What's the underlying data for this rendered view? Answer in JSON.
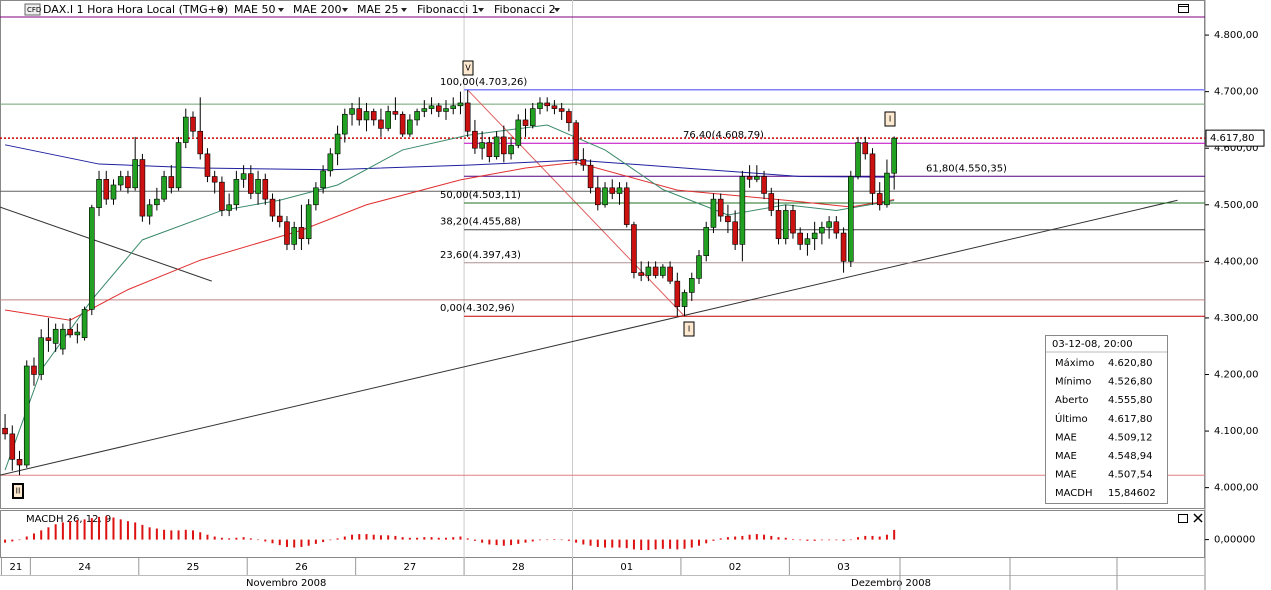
{
  "toolbar": {
    "badge": "CFD",
    "instrument": "DAX.I 1 Hora Hora Local (TMG+0)",
    "studies": [
      "Fibonacci 1",
      "Fibonacci 2"
    ]
  },
  "chart_data": {
    "type": "candlestick",
    "xlim": [
      -0.7,
      166
    ],
    "ylim": [
      3964,
      4862
    ],
    "yticks": [
      {
        "value": 4000,
        "label": "4.000,00"
      },
      {
        "value": 4100,
        "label": "4.100,00"
      },
      {
        "value": 4200,
        "label": "4.200,00"
      },
      {
        "value": 4300,
        "label": "4.300,00"
      },
      {
        "value": 4400,
        "label": "4.400,00"
      },
      {
        "value": 4500,
        "label": "4.500,00"
      },
      {
        "value": 4600,
        "label": "4.600,00"
      },
      {
        "value": 4700,
        "label": "4.700,00"
      },
      {
        "value": 4800,
        "label": "4.800,00"
      }
    ],
    "xticks": [
      {
        "value": 0,
        "label": "21"
      },
      {
        "value": 4,
        "label": "24"
      },
      {
        "value": 19,
        "label": "25"
      },
      {
        "value": 34,
        "label": "26"
      },
      {
        "value": 49,
        "label": "27"
      },
      {
        "value": 64,
        "label": "28"
      },
      {
        "value": 79,
        "label": "01"
      },
      {
        "value": 94,
        "label": "02"
      },
      {
        "value": 109,
        "label": "03"
      }
    ],
    "months": [
      "Novembro 2008",
      "Dezembro 2008"
    ],
    "up_color": "#22a022",
    "down_color": "#cc1111",
    "candles": [
      [
        4105,
        4130,
        4085,
        4095
      ],
      [
        4095,
        4110,
        4030,
        4050
      ],
      [
        4050,
        4065,
        4022,
        4040
      ],
      [
        4040,
        4225,
        4035,
        4215
      ],
      [
        4215,
        4230,
        4180,
        4200
      ],
      [
        4200,
        4280,
        4190,
        4265
      ],
      [
        4265,
        4300,
        4240,
        4260
      ],
      [
        4255,
        4290,
        4240,
        4280
      ],
      [
        4245,
        4290,
        4235,
        4280
      ],
      [
        4280,
        4300,
        4265,
        4270
      ],
      [
        4270,
        4290,
        4255,
        4275
      ],
      [
        4265,
        4320,
        4260,
        4315
      ],
      [
        4315,
        4500,
        4305,
        4495
      ],
      [
        4495,
        4560,
        4480,
        4545
      ],
      [
        4545,
        4560,
        4500,
        4510
      ],
      [
        4510,
        4545,
        4500,
        4535
      ],
      [
        4535,
        4560,
        4525,
        4550
      ],
      [
        4550,
        4560,
        4520,
        4530
      ],
      [
        4530,
        4620,
        4525,
        4580
      ],
      [
        4580,
        4590,
        4470,
        4480
      ],
      [
        4480,
        4510,
        4465,
        4500
      ],
      [
        4500,
        4530,
        4490,
        4510
      ],
      [
        4510,
        4560,
        4505,
        4550
      ],
      [
        4550,
        4570,
        4520,
        4530
      ],
      [
        4530,
        4620,
        4525,
        4610
      ],
      [
        4610,
        4670,
        4600,
        4655
      ],
      [
        4655,
        4665,
        4620,
        4630
      ],
      [
        4630,
        4690,
        4580,
        4590
      ],
      [
        4590,
        4600,
        4540,
        4550
      ],
      [
        4550,
        4560,
        4520,
        4540
      ],
      [
        4540,
        4550,
        4480,
        4490
      ],
      [
        4490,
        4520,
        4480,
        4500
      ],
      [
        4500,
        4560,
        4490,
        4545
      ],
      [
        4545,
        4570,
        4530,
        4555
      ],
      [
        4555,
        4570,
        4510,
        4520
      ],
      [
        4520,
        4560,
        4500,
        4545
      ],
      [
        4545,
        4555,
        4500,
        4510
      ],
      [
        4510,
        4520,
        4470,
        4480
      ],
      [
        4480,
        4510,
        4460,
        4470
      ],
      [
        4470,
        4480,
        4420,
        4430
      ],
      [
        4430,
        4470,
        4420,
        4460
      ],
      [
        4460,
        4500,
        4420,
        4440
      ],
      [
        4440,
        4510,
        4430,
        4500
      ],
      [
        4500,
        4540,
        4490,
        4530
      ],
      [
        4530,
        4570,
        4520,
        4560
      ],
      [
        4560,
        4600,
        4550,
        4590
      ],
      [
        4590,
        4640,
        4570,
        4625
      ],
      [
        4625,
        4670,
        4610,
        4660
      ],
      [
        4660,
        4680,
        4640,
        4670
      ],
      [
        4670,
        4690,
        4640,
        4650
      ],
      [
        4650,
        4680,
        4630,
        4665
      ],
      [
        4665,
        4670,
        4640,
        4650
      ],
      [
        4650,
        4670,
        4620,
        4635
      ],
      [
        4635,
        4675,
        4630,
        4665
      ],
      [
        4665,
        4690,
        4650,
        4660
      ],
      [
        4660,
        4665,
        4620,
        4625
      ],
      [
        4625,
        4660,
        4620,
        4650
      ],
      [
        4650,
        4670,
        4640,
        4665
      ],
      [
        4665,
        4685,
        4655,
        4670
      ],
      [
        4670,
        4690,
        4660,
        4675
      ],
      [
        4675,
        4680,
        4655,
        4665
      ],
      [
        4665,
        4685,
        4650,
        4670
      ],
      [
        4670,
        4690,
        4660,
        4675
      ],
      [
        4675,
        4700,
        4660,
        4680
      ],
      [
        4680,
        4703,
        4620,
        4630
      ],
      [
        4630,
        4650,
        4590,
        4600
      ],
      [
        4600,
        4630,
        4580,
        4610
      ],
      [
        4610,
        4620,
        4575,
        4585
      ],
      [
        4585,
        4630,
        4580,
        4620
      ],
      [
        4620,
        4640,
        4575,
        4590
      ],
      [
        4590,
        4620,
        4580,
        4605
      ],
      [
        4605,
        4660,
        4600,
        4650
      ],
      [
        4650,
        4670,
        4620,
        4640
      ],
      [
        4640,
        4680,
        4635,
        4670
      ],
      [
        4670,
        4690,
        4660,
        4680
      ],
      [
        4680,
        4690,
        4665,
        4675
      ],
      [
        4675,
        4685,
        4660,
        4670
      ],
      [
        4670,
        4680,
        4650,
        4665
      ],
      [
        4665,
        4670,
        4630,
        4645
      ],
      [
        4645,
        4650,
        4570,
        4580
      ],
      [
        4580,
        4600,
        4560,
        4570
      ],
      [
        4570,
        4580,
        4520,
        4530
      ],
      [
        4530,
        4550,
        4490,
        4500
      ],
      [
        4500,
        4540,
        4495,
        4530
      ],
      [
        4530,
        4545,
        4510,
        4520
      ],
      [
        4520,
        4540,
        4500,
        4530
      ],
      [
        4530,
        4540,
        4460,
        4465
      ],
      [
        4465,
        4470,
        4370,
        4380
      ],
      [
        4380,
        4400,
        4365,
        4375
      ],
      [
        4375,
        4400,
        4365,
        4390
      ],
      [
        4390,
        4400,
        4370,
        4375
      ],
      [
        4375,
        4395,
        4370,
        4390
      ],
      [
        4390,
        4400,
        4360,
        4365
      ],
      [
        4365,
        4380,
        4303,
        4320
      ],
      [
        4320,
        4350,
        4303,
        4345
      ],
      [
        4345,
        4380,
        4330,
        4370
      ],
      [
        4370,
        4420,
        4360,
        4410
      ],
      [
        4410,
        4470,
        4400,
        4460
      ],
      [
        4460,
        4520,
        4450,
        4510
      ],
      [
        4510,
        4520,
        4470,
        4480
      ],
      [
        4480,
        4500,
        4450,
        4470
      ],
      [
        4470,
        4490,
        4420,
        4430
      ],
      [
        4430,
        4560,
        4400,
        4550
      ],
      [
        4550,
        4570,
        4530,
        4545
      ],
      [
        4545,
        4570,
        4540,
        4550
      ],
      [
        4550,
        4560,
        4510,
        4520
      ],
      [
        4520,
        4530,
        4480,
        4490
      ],
      [
        4490,
        4510,
        4430,
        4440
      ],
      [
        4440,
        4500,
        4430,
        4490
      ],
      [
        4490,
        4500,
        4440,
        4450
      ],
      [
        4450,
        4460,
        4420,
        4430
      ],
      [
        4430,
        4450,
        4410,
        4440
      ],
      [
        4440,
        4470,
        4420,
        4450
      ],
      [
        4450,
        4470,
        4430,
        4460
      ],
      [
        4460,
        4480,
        4440,
        4470
      ],
      [
        4470,
        4480,
        4440,
        4450
      ],
      [
        4450,
        4460,
        4380,
        4400
      ],
      [
        4400,
        4560,
        4390,
        4550
      ],
      [
        4550,
        4620,
        4545,
        4610
      ],
      [
        4610,
        4620,
        4580,
        4590
      ],
      [
        4590,
        4600,
        4500,
        4520
      ],
      [
        4520,
        4540,
        4490,
        4500
      ],
      [
        4500,
        4580,
        4495,
        4556
      ],
      [
        4555.8,
        4620.8,
        4526.8,
        4617.8
      ]
    ],
    "series": [
      {
        "name": "MAE 50",
        "color": "#e03030",
        "x": [
          0,
          9,
          17,
          27,
          41,
          50,
          63,
          72,
          79,
          93,
          108,
          117,
          123
        ],
        "values": [
          4314,
          4296,
          4350,
          4402,
          4455,
          4500,
          4544,
          4565,
          4575,
          4526,
          4508,
          4496,
          4509.12
        ]
      },
      {
        "name": "MAE 200",
        "color": "#2020a0",
        "x": [
          0,
          13,
          27,
          45,
          64,
          79,
          96,
          110,
          123
        ],
        "values": [
          4606,
          4572,
          4565,
          4562,
          4570,
          4579,
          4563,
          4550,
          4548.94
        ]
      },
      {
        "name": "MAE 25",
        "color": "#3a8a6a",
        "x": [
          0,
          5,
          12,
          19,
          30,
          38,
          46,
          55,
          64,
          75,
          83,
          91,
          100,
          108,
          115,
          123
        ],
        "values": [
          4031,
          4208,
          4332,
          4438,
          4490,
          4508,
          4535,
          4597,
          4623,
          4641,
          4597,
          4527,
          4482,
          4500,
          4490,
          4507.54
        ]
      }
    ],
    "fibonacci": [
      {
        "label": "100,00(4.703,26)",
        "value": 4703.26,
        "color": "#8080ff"
      },
      {
        "label": "76,40(4.608,79)",
        "value": 4608.79,
        "color": "#c000c0"
      },
      {
        "label": "61,80(4.550,35)",
        "value": 4550.35,
        "color": "#500080"
      },
      {
        "label": "50,00(4.503,11)",
        "value": 4503.11,
        "color": "#207020"
      },
      {
        "label": "38,20(4.455,88)",
        "value": 4455.88,
        "color": "#404040"
      },
      {
        "label": "23,60(4.397,43)",
        "value": 4397.43,
        "color": "#b09090"
      },
      {
        "label": "0,00(4.302,96)",
        "value": 4302.96,
        "color": "#c00000"
      }
    ],
    "levels": [
      {
        "value": 4832,
        "color": "#800080"
      },
      {
        "value": 4678,
        "color": "#70a070"
      },
      {
        "value": 4524,
        "color": "#606060"
      },
      {
        "value": 4332,
        "color": "#c08080"
      },
      {
        "value": 4022,
        "color": "#e08080"
      }
    ],
    "trendlines": [
      {
        "x": [
          -0.7,
          162.2
        ],
        "values": [
          4022,
          4508
        ],
        "color": "#333333"
      },
      {
        "x": [
          -0.7,
          28.6
        ],
        "values": [
          4496,
          4365
        ],
        "color": "#333333"
      },
      {
        "x": [
          64,
          94
        ],
        "values": [
          4703,
          4303
        ],
        "color": "#e06060"
      }
    ],
    "markers": [
      "V",
      "I",
      "I",
      "II"
    ],
    "last_price": {
      "value": 4617.8,
      "label": "4.617,80",
      "color": "#cc0000"
    },
    "macd": {
      "name": "MACDH 26, 12, 9",
      "color": "#dd1111",
      "ylim": [
        -30,
        45
      ],
      "yticks": [
        {
          "value": 0,
          "label": "0,00000"
        }
      ],
      "values": [
        -5,
        -3,
        0,
        5,
        10,
        15,
        20,
        25,
        28,
        30,
        32,
        33,
        35,
        37,
        38,
        36,
        33,
        30,
        28,
        24,
        20,
        18,
        16,
        15,
        15,
        16,
        15,
        12,
        8,
        5,
        3,
        2,
        3,
        4,
        2,
        0,
        -3,
        -6,
        -9,
        -12,
        -13,
        -12,
        -10,
        -7,
        -4,
        -1,
        2,
        5,
        8,
        9,
        9,
        8,
        7,
        7,
        6,
        4,
        3,
        3,
        4,
        4,
        3,
        3,
        4,
        5,
        2,
        -2,
        -5,
        -8,
        -9,
        -10,
        -9,
        -7,
        -5,
        -3,
        -1,
        0,
        1,
        0,
        -2,
        -5,
        -8,
        -10,
        -12,
        -13,
        -13,
        -13,
        -14,
        -16,
        -17,
        -17,
        -16,
        -15,
        -15,
        -16,
        -15,
        -13,
        -10,
        -6,
        -2,
        2,
        4,
        5,
        6,
        8,
        9,
        8,
        6,
        4,
        3,
        1,
        -1,
        -2,
        -2,
        -1,
        -1,
        -1,
        -2,
        0,
        4,
        6,
        6,
        5,
        8,
        15.84602
      ]
    }
  },
  "info": {
    "title": "03-12-08, 20:00",
    "rows": [
      {
        "label": "Máximo",
        "value": "4.620,80",
        "color": "#000000"
      },
      {
        "label": "Mínimo",
        "value": "4.526,80",
        "color": "#000000"
      },
      {
        "label": "Aberto",
        "value": "4.555,80",
        "color": "#000000"
      },
      {
        "label": "Último",
        "value": "4.617,80",
        "color": "#000000"
      },
      {
        "label": "MAE",
        "value": "4.509,12",
        "color": "#cc2020"
      },
      {
        "label": "MAE",
        "value": "4.548,94",
        "color": "#2020a0"
      },
      {
        "label": "MAE",
        "value": "4.507,54",
        "color": "#3a8a6a"
      },
      {
        "label": "MACDH",
        "value": "15,84602",
        "color": "#cc2020"
      }
    ]
  }
}
